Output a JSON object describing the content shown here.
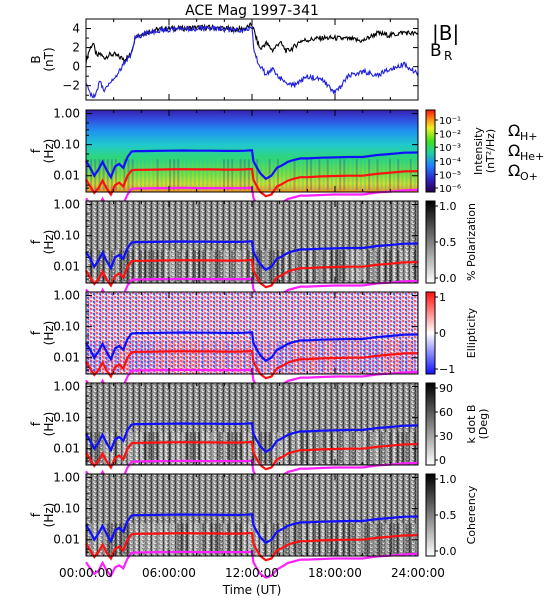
{
  "chart_data": {
    "title": "ACE Mag 1997-341",
    "xlabel": "Time (UT)",
    "x_ticks": [
      "00:00:00",
      "06:00:00",
      "12:00:00",
      "18:00:00",
      "24:00:00"
    ],
    "x_range_hours": [
      0,
      24
    ],
    "panels": [
      {
        "type": "line",
        "ylabel": "B",
        "yunit": "(nT)",
        "y_ticks": [
          "4",
          "2",
          "0",
          "−2"
        ],
        "ylim": [
          -3.5,
          5
        ],
        "legend": [
          {
            "label": "|B|",
            "color": "#000000"
          },
          {
            "label": "B",
            "sub": "R",
            "color": "#2020e0"
          }
        ],
        "series": [
          {
            "label": "|B|",
            "color": "#000000",
            "x": [
              0,
              0.2,
              0.5,
              0.8,
              1.0,
              1.3,
              1.6,
              2.0,
              2.4,
              2.8,
              3.2,
              3.6,
              4.0,
              4.4,
              4.8,
              5.2,
              6,
              7,
              8,
              9,
              10,
              11,
              11.5,
              12.0,
              12.1,
              12.3,
              12.6,
              13.0,
              13.5,
              14,
              14.5,
              15,
              15.5,
              16,
              17,
              18,
              19,
              20,
              21,
              22,
              23,
              24
            ],
            "y": [
              0.5,
              1.6,
              2.5,
              1.0,
              1.4,
              0.9,
              1.2,
              1.3,
              1.0,
              0.8,
              1.2,
              3.3,
              3.4,
              3.6,
              3.8,
              3.9,
              4.0,
              4.0,
              4.1,
              4.1,
              4.0,
              3.9,
              4.0,
              4.4,
              4.0,
              3.0,
              1.8,
              2.5,
              1.7,
              2.6,
              1.6,
              2.0,
              2.7,
              2.8,
              3.0,
              3.0,
              2.9,
              2.7,
              3.5,
              3.3,
              3.6,
              3.4
            ]
          },
          {
            "label": "B_R",
            "color": "#2020e0",
            "x": [
              0,
              0.2,
              0.5,
              0.8,
              1.0,
              1.3,
              1.6,
              2.0,
              2.4,
              2.8,
              3.2,
              3.6,
              4.0,
              4.4,
              4.8,
              5.2,
              6,
              7,
              8,
              9,
              10,
              11,
              11.5,
              12.0,
              12.1,
              12.3,
              12.6,
              13.0,
              13.5,
              14,
              14.5,
              15,
              15.5,
              16,
              17,
              18,
              19,
              20,
              21,
              22,
              23,
              24
            ],
            "y": [
              -1.8,
              -2.5,
              -3.2,
              -2.6,
              -1.5,
              -2.5,
              -1.8,
              -1.3,
              -0.5,
              0.5,
              1.2,
              3.2,
              3.3,
              3.5,
              3.7,
              3.8,
              3.9,
              3.9,
              4.0,
              4.0,
              3.9,
              3.8,
              3.9,
              4.2,
              2.0,
              1.0,
              0.0,
              -0.8,
              -0.2,
              -1.2,
              -1.6,
              -2.0,
              -1.5,
              -1.0,
              -1.3,
              -2.8,
              -1.0,
              -0.5,
              -0.9,
              -0.3,
              0.3,
              -0.8
            ]
          }
        ]
      },
      {
        "type": "heatmap",
        "ylabel": "f",
        "yunit": "(Hz)",
        "y_ticks": [
          "1.00",
          "0.10",
          "0.01"
        ],
        "colorbar_label": "Intensity",
        "colorbar_unit": "(nT²/Hz)",
        "colorbar_ticks": [
          "10⁻¹",
          "10⁻²",
          "10⁻³",
          "10⁻⁴",
          "10⁻⁵",
          "10⁻⁶"
        ],
        "colormap": "rainbow",
        "legend": [
          {
            "label": "Ω",
            "sub": "H+",
            "color": "#2020ff"
          },
          {
            "label": "Ω",
            "sub": "He+",
            "color": "#ff2020"
          },
          {
            "label": "Ω",
            "sub": "O+",
            "color": "#ff20ff"
          }
        ]
      },
      {
        "type": "heatmap",
        "ylabel": "f",
        "yunit": "(Hz)",
        "y_ticks": [
          "1.00",
          "0.10",
          "0.01"
        ],
        "colorbar_label": "% Polarization",
        "colorbar_ticks": [
          "1.0",
          "0.5",
          "0.0"
        ],
        "colormap": "gray"
      },
      {
        "type": "heatmap",
        "ylabel": "f",
        "yunit": "(Hz)",
        "y_ticks": [
          "1.00",
          "0.10",
          "0.01"
        ],
        "colorbar_label": "Ellipticity",
        "colorbar_ticks": [
          "1",
          "0",
          "−1"
        ],
        "colormap": "bwr"
      },
      {
        "type": "heatmap",
        "ylabel": "f",
        "yunit": "(Hz)",
        "y_ticks": [
          "1.00",
          "0.10",
          "0.01"
        ],
        "colorbar_label": "k dot B",
        "colorbar_unit": "(Deg)",
        "colorbar_ticks": [
          "90",
          "60",
          "30",
          "0"
        ],
        "colormap": "gray"
      },
      {
        "type": "heatmap",
        "ylabel": "f",
        "yunit": "(Hz)",
        "y_ticks": [
          "1.00",
          "0.10",
          "0.01"
        ],
        "colorbar_label": "Coherency",
        "colorbar_ticks": [
          "1.0",
          "0.5",
          "0.0"
        ],
        "colormap": "gray"
      }
    ],
    "gyrofrequency_lines": {
      "x": [
        0,
        0.3,
        0.6,
        0.9,
        1.2,
        1.5,
        1.8,
        2.1,
        2.4,
        2.7,
        3.0,
        3.3,
        3.6,
        4,
        5,
        6,
        7,
        8,
        9,
        10,
        11,
        11.5,
        12.0,
        12.1,
        12.3,
        12.6,
        13.0,
        13.4,
        13.8,
        14.2,
        14.6,
        15.0,
        15.5,
        16,
        17,
        18,
        19,
        20,
        21,
        22,
        23,
        24
      ],
      "H+": [
        0.03,
        0.018,
        0.01,
        0.016,
        0.028,
        0.015,
        0.009,
        0.02,
        0.024,
        0.018,
        0.04,
        0.06,
        0.062,
        0.062,
        0.063,
        0.064,
        0.065,
        0.064,
        0.064,
        0.063,
        0.063,
        0.064,
        0.066,
        0.03,
        0.02,
        0.012,
        0.008,
        0.01,
        0.018,
        0.022,
        0.028,
        0.032,
        0.036,
        0.036,
        0.038,
        0.039,
        0.04,
        0.04,
        0.046,
        0.05,
        0.055,
        0.056
      ],
      "He+": [
        0.0075,
        0.0045,
        0.0028,
        0.004,
        0.007,
        0.0038,
        0.0025,
        0.005,
        0.006,
        0.0045,
        0.01,
        0.015,
        0.0155,
        0.0155,
        0.0158,
        0.016,
        0.0162,
        0.016,
        0.016,
        0.0158,
        0.0158,
        0.016,
        0.0165,
        0.0075,
        0.005,
        0.003,
        0.0022,
        0.0025,
        0.0045,
        0.0055,
        0.007,
        0.008,
        0.009,
        0.009,
        0.0095,
        0.0098,
        0.01,
        0.01,
        0.0115,
        0.0125,
        0.0138,
        0.014
      ],
      "O+": [
        0.0019,
        0.0012,
        0.0008,
        0.001,
        0.0018,
        0.001,
        0.0007,
        0.0013,
        0.0015,
        0.0012,
        0.0025,
        0.0038,
        0.0039,
        0.0039,
        0.004,
        0.004,
        0.0041,
        0.004,
        0.004,
        0.004,
        0.004,
        0.004,
        0.0041,
        0.0019,
        0.0013,
        0.0008,
        0.0006,
        0.0007,
        0.0011,
        0.0014,
        0.0018,
        0.002,
        0.0023,
        0.0023,
        0.0024,
        0.0025,
        0.0025,
        0.0025,
        0.0029,
        0.0031,
        0.0034,
        0.0035
      ]
    },
    "freq_range_hz": [
      0.003,
      1.3
    ]
  }
}
